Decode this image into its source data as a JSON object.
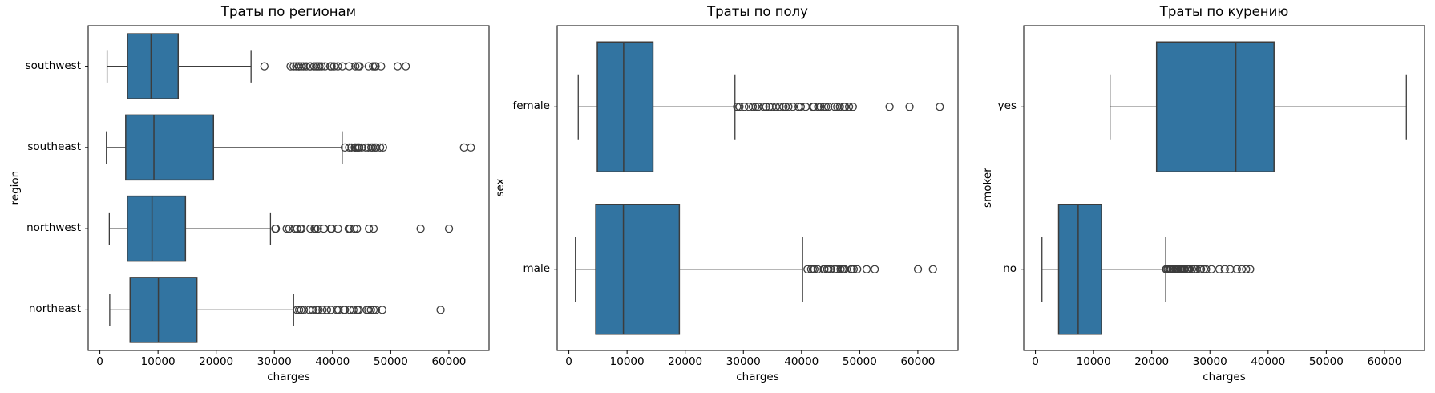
{
  "figure": {
    "background": "#ffffff"
  },
  "style": {
    "box_fill": "#3274a1",
    "line_color": "#3c3c3c",
    "spine_color": "#000000",
    "text_color": "#000000"
  },
  "chart_data": [
    {
      "type": "boxplot",
      "orientation": "horizontal",
      "title": "Траты по регионам",
      "xlabel": "charges",
      "ylabel": "region",
      "grid": false,
      "legend": "none",
      "xlim": [
        -2011,
        66902
      ],
      "xticks": [
        0,
        10000,
        20000,
        30000,
        40000,
        50000,
        60000
      ],
      "categories": [
        "southwest",
        "southeast",
        "northwest",
        "northeast"
      ],
      "boxes": [
        {
          "label": "southwest",
          "whislo": 1242,
          "q1": 4751,
          "med": 8798,
          "q3": 13463,
          "whishi": 25992,
          "outliers": [
            28287,
            32787,
            33307,
            33750,
            34166,
            34254,
            34617,
            35000,
            35491,
            36085,
            36219,
            36837,
            37165,
            37465,
            37742,
            38126,
            38709,
            39611,
            39836,
            40273,
            40904,
            41676,
            42856,
            43921,
            44400,
            44641,
            46200,
            46939,
            47269,
            47403,
            48340,
            51195,
            52591
          ]
        },
        {
          "label": "southeast",
          "whislo": 1122,
          "q1": 4441,
          "med": 9294,
          "q3": 19526,
          "whishi": 41661,
          "outliers": [
            42112,
            42856,
            43254,
            43813,
            43943,
            44202,
            44423,
            44585,
            45008,
            45702,
            46130,
            46661,
            46889,
            47291,
            47496,
            48173,
            48675,
            62593,
            63770
          ]
        },
        {
          "label": "northwest",
          "whislo": 1621,
          "q1": 4720,
          "med": 8966,
          "q3": 14712,
          "whishi": 29331,
          "outliers": [
            30167,
            30184,
            30260,
            32108,
            32548,
            33471,
            33907,
            34472,
            34672,
            36197,
            36898,
            37079,
            37484,
            38511,
            39725,
            39871,
            40932,
            42760,
            42983,
            43753,
            44202,
            46255,
            47055,
            55135,
            60021
          ]
        },
        {
          "label": "northeast",
          "whislo": 1695,
          "q1": 5194,
          "med": 10058,
          "q3": 16687,
          "whishi": 33307,
          "outliers": [
            33900,
            34254,
            34617,
            35069,
            36021,
            36580,
            37270,
            37607,
            38282,
            39047,
            39723,
            40721,
            41034,
            41919,
            42111,
            42983,
            43578,
            44260,
            44501,
            45863,
            46151,
            46599,
            47055,
            47462,
            48549,
            58571
          ]
        }
      ]
    },
    {
      "type": "boxplot",
      "orientation": "horizontal",
      "title": "Траты по полу",
      "xlabel": "charges",
      "ylabel": "sex",
      "grid": false,
      "legend": "none",
      "xlim": [
        -2011,
        66902
      ],
      "xticks": [
        0,
        10000,
        20000,
        30000,
        40000,
        50000,
        60000
      ],
      "categories": [
        "female",
        "male"
      ],
      "boxes": [
        {
          "label": "female",
          "whislo": 1608,
          "q1": 4885,
          "med": 9413,
          "q3": 14455,
          "whishi": 28553,
          "outliers": [
            28923,
            29331,
            30167,
            30943,
            31620,
            32108,
            32548,
            33471,
            33907,
            34472,
            35000,
            35608,
            36219,
            36898,
            37270,
            37742,
            38511,
            39497,
            39871,
            40720,
            41919,
            42112,
            42856,
            43254,
            43896,
            44202,
            44585,
            45702,
            46130,
            46599,
            47291,
            47496,
            48173,
            48824,
            55135,
            58571,
            63770
          ]
        },
        {
          "label": "male",
          "whislo": 1122,
          "q1": 4619,
          "med": 9369,
          "q3": 18990,
          "whishi": 40182,
          "outliers": [
            41034,
            41661,
            41949,
            42211,
            42760,
            43813,
            43943,
            44400,
            44641,
            45008,
            45710,
            46113,
            46718,
            47055,
            47269,
            47403,
            48549,
            48675,
            48970,
            49577,
            51195,
            52591,
            60021,
            62593
          ]
        }
      ]
    },
    {
      "type": "boxplot",
      "orientation": "horizontal",
      "title": "Траты по курению",
      "xlabel": "charges",
      "ylabel": "smoker",
      "grid": false,
      "legend": "none",
      "xlim": [
        -2011,
        66902
      ],
      "xticks": [
        0,
        10000,
        20000,
        30000,
        40000,
        50000,
        60000
      ],
      "categories": [
        "yes",
        "no"
      ],
      "boxes": [
        {
          "label": "yes",
          "whislo": 12829,
          "q1": 20826,
          "med": 34456,
          "q3": 41019,
          "whishi": 63770,
          "outliers": []
        },
        {
          "label": "no",
          "whislo": 1122,
          "q1": 3986,
          "med": 7345,
          "q3": 11363,
          "whishi": 22396,
          "outliers": [
            22463,
            22493,
            22717,
            23045,
            23065,
            23244,
            23288,
            23568,
            23807,
            24059,
            24227,
            24393,
            24476,
            24536,
            24603,
            24869,
            24915,
            25081,
            25309,
            25517,
            25678,
            26018,
            26109,
            26236,
            26392,
            26467,
            26926,
            27346,
            27724,
            28287,
            28468,
            28923,
            29331,
            30260,
            31620,
            32548,
            33471,
            34618,
            35492,
            36219,
            36911
          ]
        }
      ]
    }
  ]
}
